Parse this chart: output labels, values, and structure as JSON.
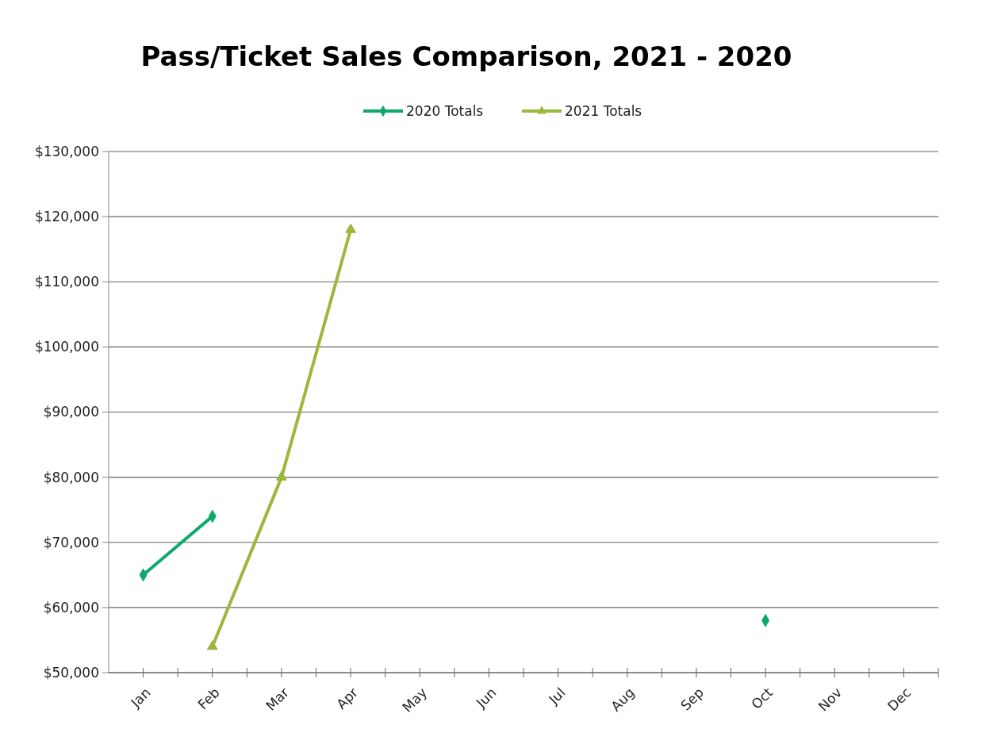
{
  "chart_data": {
    "type": "line",
    "title": "Pass/Ticket Sales Comparison, 2021 - 2020",
    "categories": [
      "Jan",
      "Feb",
      "Mar",
      "Apr",
      "May",
      "Jun",
      "Jul",
      "Aug",
      "Sep",
      "Oct",
      "Nov",
      "Dec"
    ],
    "series": [
      {
        "name": "2020 Totals",
        "color": "#0fa86c",
        "marker": "diamond",
        "values": [
          65000,
          74000,
          null,
          null,
          null,
          null,
          null,
          null,
          null,
          58000,
          null,
          null
        ]
      },
      {
        "name": "2021 Totals",
        "color": "#9bb83c",
        "marker": "triangle",
        "values": [
          null,
          54000,
          80000,
          118000,
          null,
          null,
          null,
          null,
          null,
          null,
          null,
          null
        ]
      }
    ],
    "ylim": [
      50000,
      130000
    ],
    "yticks": [
      {
        "value": 50000,
        "label": "$50,000"
      },
      {
        "value": 60000,
        "label": "$60,000"
      },
      {
        "value": 70000,
        "label": "$70,000"
      },
      {
        "value": 80000,
        "label": "$80,000"
      },
      {
        "value": 90000,
        "label": "$90,000"
      },
      {
        "value": 100000,
        "label": "$100,000"
      },
      {
        "value": 110000,
        "label": "$110,000"
      },
      {
        "value": 120000,
        "label": "$120,000"
      },
      {
        "value": 130000,
        "label": "$130,000"
      }
    ],
    "grid": "y",
    "legend": "top",
    "line_style": "solid"
  }
}
